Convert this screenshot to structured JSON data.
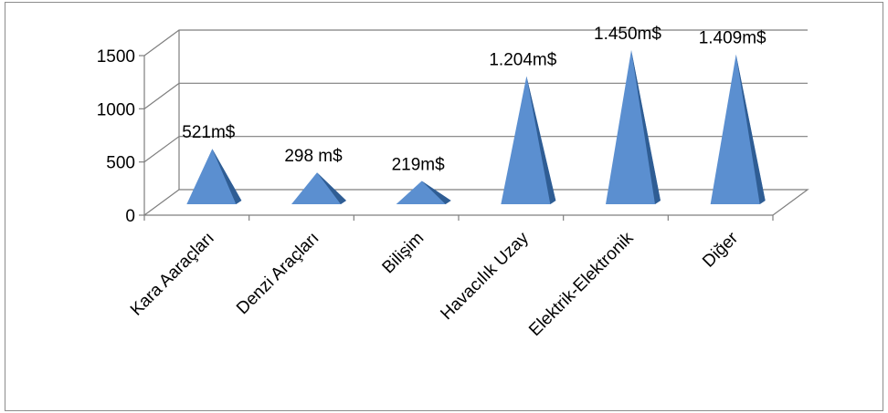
{
  "chart_data": {
    "type": "bar",
    "bar_shape": "pyramid-3d",
    "categories": [
      "Kara Aaraçları",
      "Denzi Araçları",
      "Bilişim",
      "Havacılık Uzay",
      "Elektrik-Elektronik",
      "Diğer"
    ],
    "values": [
      521,
      298,
      219,
      1204,
      1450,
      1409
    ],
    "data_labels": [
      "521m$",
      "298 m$",
      "219m$",
      "1.204m$",
      "1.450m$",
      "1.409m$"
    ],
    "y_ticks": [
      0,
      500,
      1000,
      1500
    ],
    "ylim": [
      0,
      1500
    ],
    "grid": true,
    "legend": "none",
    "colors": {
      "front": "#5b8fd0",
      "side": "#2f5d94",
      "grid": "#7f7f7f"
    }
  }
}
